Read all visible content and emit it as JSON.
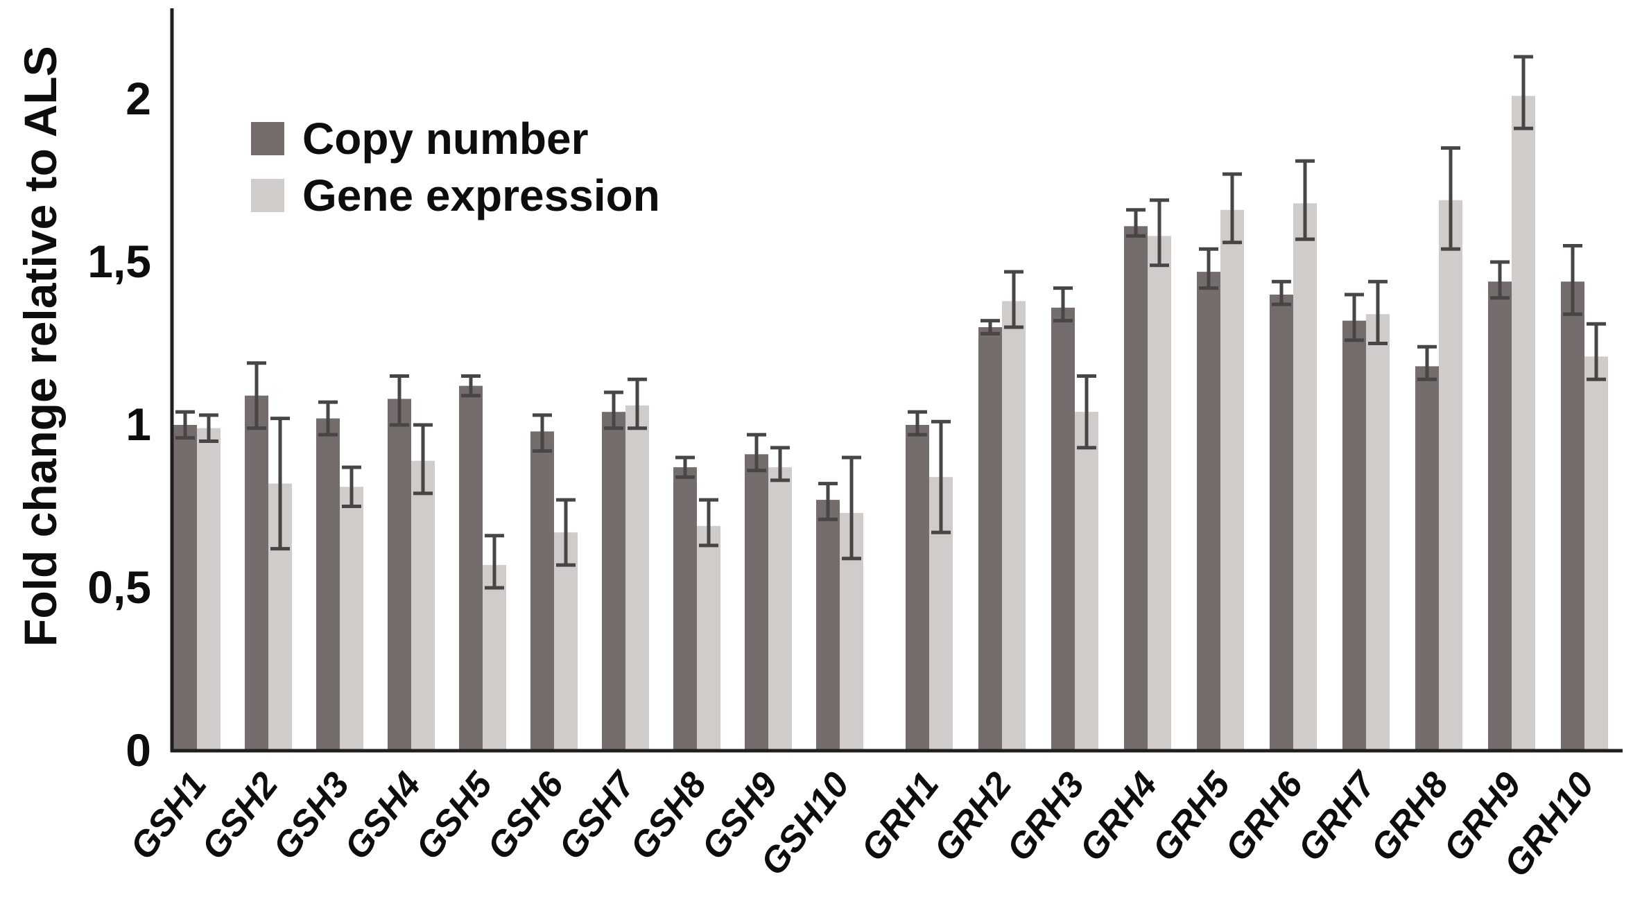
{
  "chart_data": {
    "type": "bar",
    "title": "",
    "ylabel": "Fold change relative to ALS",
    "xlabel": "",
    "ylim": [
      0,
      2.2
    ],
    "yticks": [
      0,
      0.5,
      1,
      1.5,
      2
    ],
    "ytick_labels": [
      "0",
      "0,5",
      "1",
      "1,5",
      "2"
    ],
    "grid": false,
    "legend_position": "upper-left-inside",
    "error_bars": true,
    "clusters": [
      {
        "name": "GSH",
        "categories": [
          "GSH1",
          "GSH2",
          "GSH3",
          "GSH4",
          "GSH5",
          "GSH6",
          "GSH7",
          "GSH8",
          "GSH9",
          "GSH10"
        ],
        "series": [
          {
            "name": "Copy number",
            "values": [
              1.0,
              1.09,
              1.02,
              1.08,
              1.12,
              0.98,
              1.04,
              0.87,
              0.91,
              0.77
            ],
            "err_low": [
              0.96,
              0.99,
              0.97,
              1.0,
              1.09,
              0.92,
              0.99,
              0.84,
              0.86,
              0.71
            ],
            "err_high": [
              1.04,
              1.19,
              1.07,
              1.15,
              1.15,
              1.03,
              1.1,
              0.9,
              0.97,
              0.82
            ]
          },
          {
            "name": "Gene expression",
            "values": [
              0.99,
              0.82,
              0.81,
              0.89,
              0.57,
              0.67,
              1.06,
              0.69,
              0.87,
              0.73
            ],
            "err_low": [
              0.95,
              0.62,
              0.75,
              0.79,
              0.5,
              0.57,
              0.99,
              0.63,
              0.83,
              0.59
            ],
            "err_high": [
              1.03,
              1.02,
              0.87,
              1.0,
              0.66,
              0.77,
              1.14,
              0.77,
              0.93,
              0.9
            ]
          }
        ]
      },
      {
        "name": "GRH",
        "categories": [
          "GRH1",
          "GRH2",
          "GRH3",
          "GRH4",
          "GRH5",
          "GRH6",
          "GRH7",
          "GRH8",
          "GRH9",
          "GRH10"
        ],
        "series": [
          {
            "name": "Copy number",
            "values": [
              1.0,
              1.3,
              1.36,
              1.61,
              1.47,
              1.4,
              1.32,
              1.18,
              1.44,
              1.44
            ],
            "err_low": [
              0.97,
              1.28,
              1.32,
              1.58,
              1.42,
              1.37,
              1.26,
              1.14,
              1.39,
              1.34
            ],
            "err_high": [
              1.04,
              1.32,
              1.42,
              1.66,
              1.54,
              1.44,
              1.4,
              1.24,
              1.5,
              1.55
            ]
          },
          {
            "name": "Gene expression",
            "values": [
              0.84,
              1.38,
              1.04,
              1.58,
              1.66,
              1.68,
              1.34,
              1.69,
              2.01,
              1.21
            ],
            "err_low": [
              0.67,
              1.3,
              0.93,
              1.49,
              1.56,
              1.57,
              1.25,
              1.54,
              1.91,
              1.14
            ],
            "err_high": [
              1.01,
              1.47,
              1.15,
              1.69,
              1.77,
              1.81,
              1.44,
              1.85,
              2.13,
              1.31
            ]
          }
        ]
      }
    ],
    "legend": [
      {
        "label": "Copy number",
        "color": "#756c6c"
      },
      {
        "label": "Gene expression",
        "color": "#cfccca"
      }
    ],
    "colors": {
      "copy_number": "#756c6c",
      "gene_expression": "#cfccca",
      "error_bar": "#474545",
      "axis": "#1f1f1f",
      "text": "#0d0d0d"
    }
  }
}
